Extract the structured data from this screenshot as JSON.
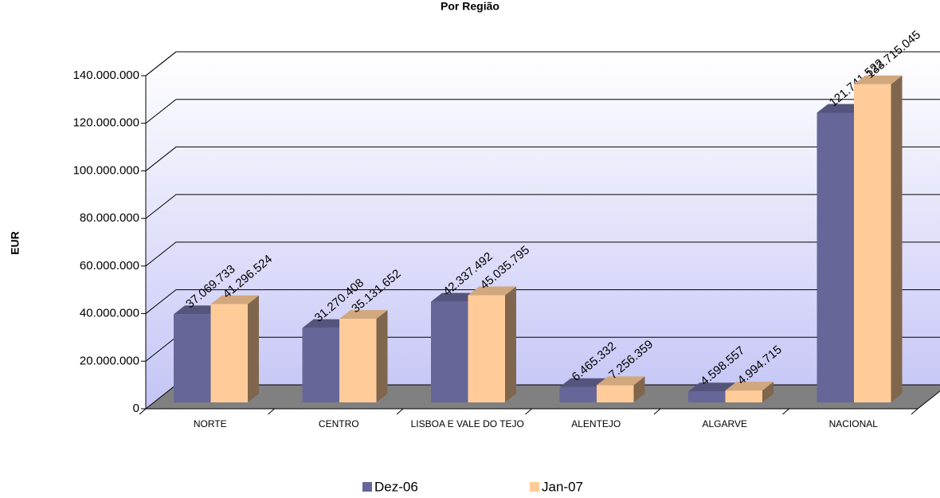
{
  "chart_data": {
    "type": "bar",
    "title": "Por Região",
    "ylabel": "EUR",
    "categories": [
      "NORTE",
      "CENTRO",
      "LISBOA E VALE DO TEJO",
      "ALENTEJO",
      "ALGARVE",
      "NACIONAL"
    ],
    "series": [
      {
        "name": "Dez-06",
        "color": "#666699",
        "values": [
          37069733,
          31270408,
          42337492,
          6465332,
          4598557,
          121741522
        ],
        "value_labels": [
          "37.069.733",
          "31.270.408",
          "42.337.492",
          "6.465.332",
          "4.598.557",
          "121.741.522"
        ]
      },
      {
        "name": "Jan-07",
        "color": "#ffcc99",
        "values": [
          41296524,
          35131652,
          45035795,
          7256359,
          4994715,
          133715045
        ],
        "value_labels": [
          "41.296.524",
          "35.131.652",
          "45.035.795",
          "7.256.359",
          "4.994.715",
          "133.715.045"
        ]
      }
    ],
    "ylim": [
      0,
      140000000
    ],
    "yticks": [
      0,
      {
        "value": 20000000,
        "label": "20.000.000"
      },
      {
        "value": 40000000,
        "label": "40.000.000"
      },
      {
        "value": 60000000,
        "label": "60.000.000"
      },
      {
        "value": 80000000,
        "label": "80.000.000"
      },
      {
        "value": 100000000,
        "label": "100.000.000"
      },
      {
        "value": 120000000,
        "label": "120.000.000"
      },
      {
        "value": 140000000,
        "label": "140.000.000"
      }
    ],
    "grid": true,
    "legend": "bottom"
  }
}
